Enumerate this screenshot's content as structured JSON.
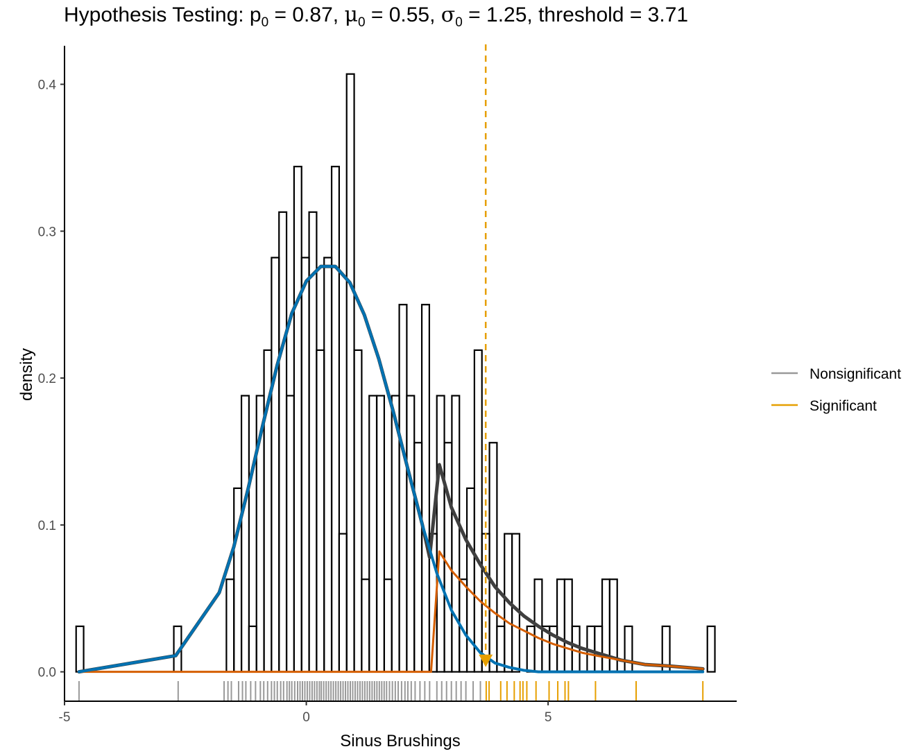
{
  "chart_data": {
    "type": "histogram",
    "title": {
      "prefix": "Hypothesis Testing: ",
      "p_sym": "p",
      "p_sub": "0",
      "p_val": " = 0.87, ",
      "mu_sym": "μ",
      "mu_sub": "0",
      "mu_val": " = 0.55, ",
      "sigma_sym": "σ",
      "sigma_sub": "0",
      "sigma_val": " = 1.25, threshold = 3.71"
    },
    "xlabel": "Sinus Brushings",
    "ylabel": "density",
    "xlim": [
      -5.0,
      8.9
    ],
    "ylim": [
      -0.02,
      0.43
    ],
    "x_ticks": [
      -5,
      0,
      5
    ],
    "x_tick_labels": [
      "-5",
      "0",
      "5"
    ],
    "y_ticks": [
      0.0,
      0.1,
      0.2,
      0.3,
      0.4
    ],
    "y_tick_labels": [
      "0.0",
      "0.1",
      "0.2",
      "0.3",
      "0.4"
    ],
    "threshold": 3.71,
    "bin_start": -4.76,
    "bin_width": 0.1554,
    "bin_heights": [
      0.031,
      0,
      0,
      0,
      0,
      0,
      0,
      0,
      0,
      0,
      0,
      0,
      0,
      0.031,
      0,
      0,
      0,
      0,
      0,
      0,
      0.063,
      0.125,
      0.188,
      0.031,
      0.188,
      0.219,
      0.282,
      0.313,
      0.188,
      0.344,
      0.282,
      0.313,
      0.219,
      0.282,
      0.344,
      0.094,
      0.407,
      0.219,
      0.063,
      0.188,
      0.188,
      0.063,
      0.188,
      0.25,
      0.188,
      0.156,
      0.25,
      0.094,
      0.188,
      0.156,
      0.188,
      0.063,
      0.125,
      0.219,
      0.094,
      0.156,
      0.031,
      0.094,
      0.094,
      0,
      0.031,
      0.063,
      0.031,
      0.031,
      0.063,
      0.063,
      0.031,
      0,
      0.031,
      0.031,
      0.063,
      0.063,
      0,
      0.031,
      0,
      0,
      0,
      0,
      0.031,
      0,
      0,
      0,
      0,
      0,
      0.031
    ],
    "series": [
      {
        "name": "",
        "color": "#3f3f3f",
        "width": 5,
        "x": [
          -4.7,
          -2.7,
          -1.8,
          -1.5,
          -1.2,
          -0.9,
          -0.6,
          -0.3,
          0,
          0.3,
          0.6,
          0.9,
          1.2,
          1.5,
          1.8,
          2.1,
          2.4,
          2.55,
          2.75,
          3.0,
          3.3,
          3.6,
          3.9,
          4.2,
          4.5,
          4.8,
          5.1,
          5.4,
          5.7,
          6.0,
          6.5,
          7.0,
          7.5,
          8.2
        ],
        "y": [
          0,
          0.011,
          0.054,
          0.085,
          0.125,
          0.168,
          0.209,
          0.244,
          0.266,
          0.276,
          0.276,
          0.265,
          0.243,
          0.213,
          0.177,
          0.138,
          0.1,
          0.078,
          0.141,
          0.112,
          0.09,
          0.073,
          0.058,
          0.047,
          0.038,
          0.031,
          0.025,
          0.02,
          0.016,
          0.013,
          0.008,
          0.005,
          0.004,
          0.002
        ]
      },
      {
        "name": "",
        "color": "#d55e00",
        "width": 3,
        "x": [
          -4.7,
          2.58,
          2.75,
          3.0,
          3.3,
          3.6,
          3.9,
          4.2,
          4.5,
          4.8,
          5.1,
          5.4,
          5.7,
          6.0,
          6.5,
          7.0,
          7.5,
          8.2
        ],
        "y": [
          0,
          0,
          0.082,
          0.069,
          0.058,
          0.048,
          0.04,
          0.033,
          0.028,
          0.023,
          0.019,
          0.016,
          0.013,
          0.011,
          0.008,
          0.005,
          0.004,
          0.002
        ]
      },
      {
        "name": "",
        "color": "#0072b2",
        "width": 4,
        "x": [
          -4.7,
          -2.7,
          -1.8,
          -1.5,
          -1.2,
          -0.9,
          -0.6,
          -0.3,
          0,
          0.3,
          0.6,
          0.9,
          1.2,
          1.5,
          1.8,
          2.1,
          2.4,
          2.7,
          3.0,
          3.3,
          3.6,
          3.9,
          4.2,
          4.5,
          4.8,
          5.5,
          6.5,
          8.2
        ],
        "y": [
          0,
          0.011,
          0.054,
          0.085,
          0.125,
          0.168,
          0.209,
          0.244,
          0.266,
          0.276,
          0.276,
          0.265,
          0.243,
          0.213,
          0.177,
          0.138,
          0.1,
          0.067,
          0.042,
          0.025,
          0.013,
          0.006,
          0.003,
          0.001,
          0,
          0,
          0,
          0
        ]
      }
    ],
    "rug": {
      "nonsignificant": [
        -4.7,
        -2.65,
        -1.7,
        -1.62,
        -1.55,
        -1.4,
        -1.32,
        -1.25,
        -1.15,
        -1.05,
        -0.95,
        -0.88,
        -0.8,
        -0.72,
        -0.66,
        -0.6,
        -0.53,
        -0.47,
        -0.4,
        -0.35,
        -0.3,
        -0.24,
        -0.18,
        -0.13,
        -0.08,
        -0.03,
        0.02,
        0.07,
        0.12,
        0.17,
        0.22,
        0.27,
        0.31,
        0.36,
        0.41,
        0.46,
        0.51,
        0.56,
        0.61,
        0.66,
        0.71,
        0.76,
        0.81,
        0.86,
        0.91,
        0.96,
        1.01,
        1.06,
        1.11,
        1.16,
        1.21,
        1.26,
        1.31,
        1.36,
        1.41,
        1.46,
        1.51,
        1.56,
        1.61,
        1.66,
        1.72,
        1.78,
        1.84,
        1.9,
        1.97,
        2.04,
        2.1,
        2.17,
        2.25,
        2.35,
        2.45,
        2.55,
        2.7,
        2.8,
        2.9,
        3.0,
        3.1,
        3.2,
        3.3,
        3.45,
        3.6
      ],
      "significant": [
        3.72,
        3.78,
        4.02,
        4.15,
        4.3,
        4.42,
        4.48,
        4.56,
        4.75,
        5.02,
        5.2,
        5.35,
        5.42,
        5.98,
        6.82,
        8.2
      ]
    },
    "legend": {
      "position": "right",
      "items": [
        {
          "label": "Nonsignificant",
          "color": "#999999"
        },
        {
          "label": "Significant",
          "color": "#e69f00"
        }
      ]
    }
  }
}
